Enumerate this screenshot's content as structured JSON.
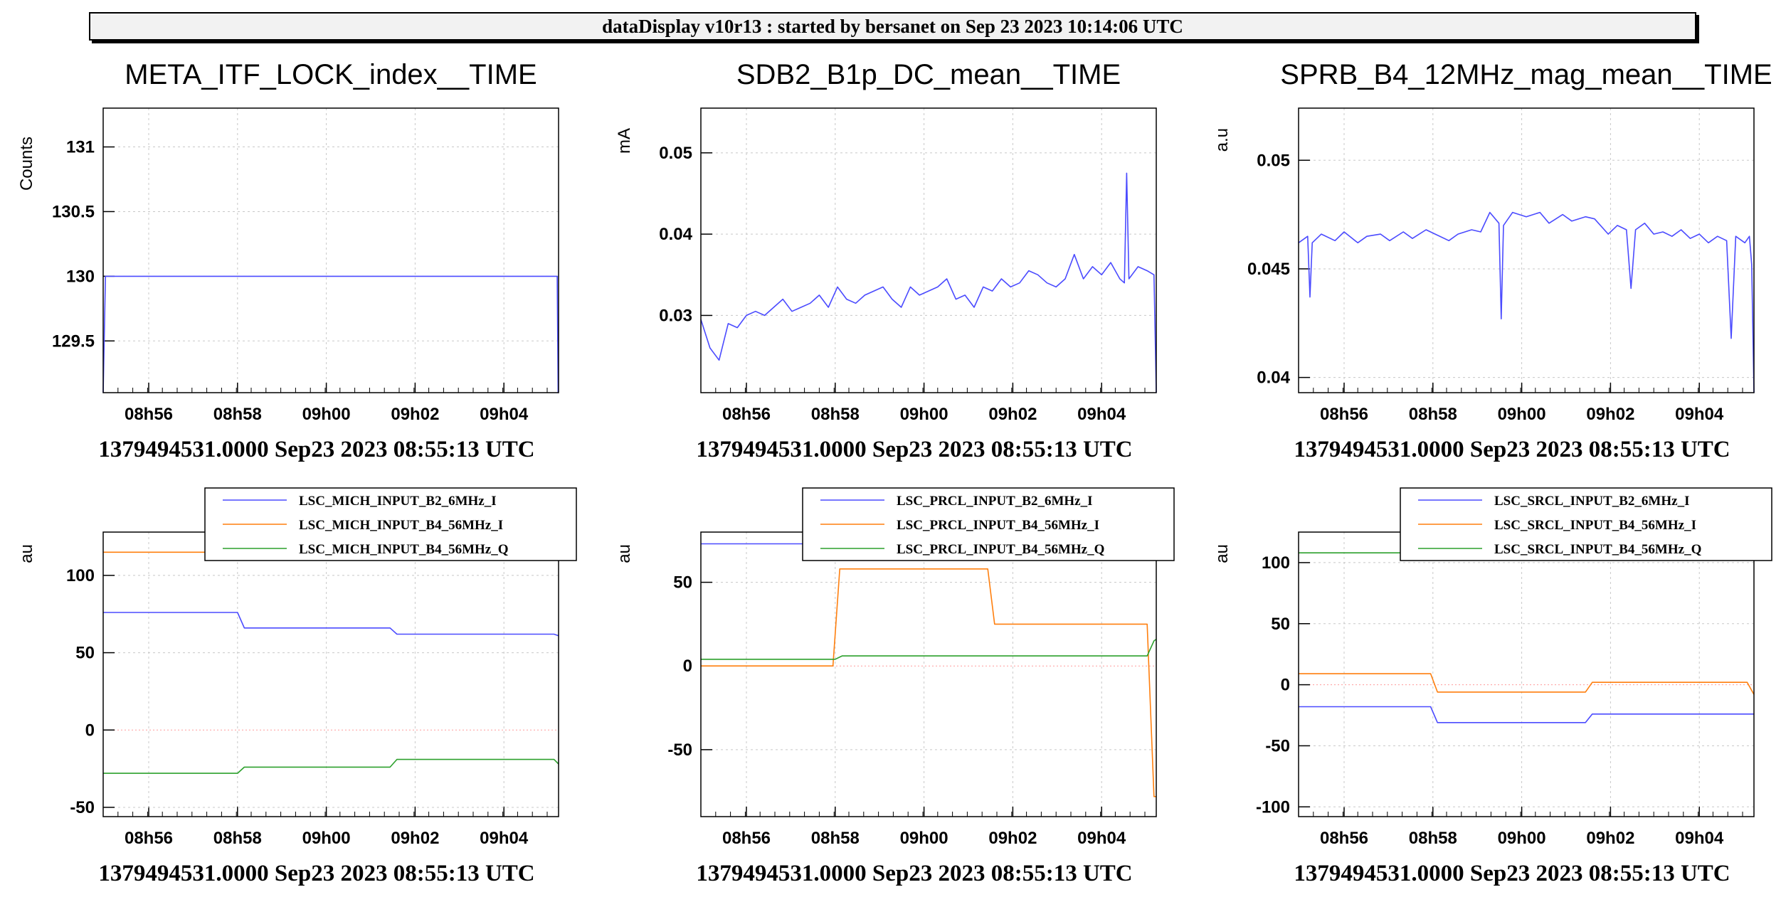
{
  "header": {
    "title": "dataDisplay v10r13 : started by bersanet on Sep 23 2023 10:14:06 UTC"
  },
  "colors": {
    "blue": "#4b4bff",
    "orange": "#ff7f0e",
    "green": "#2ca02c",
    "grid": "#c8c8c8",
    "red_zero": "#ff9a9a"
  },
  "chart_data": [
    {
      "type": "line",
      "title": "META_ITF_LOCK_index__TIME",
      "ylabel": "Counts",
      "footer": "1379494531.0000 Sep23 2023 08:55:13 UTC",
      "xticks": [
        "08h56",
        "08h58",
        "09h00",
        "09h02",
        "09h04"
      ],
      "yticks": [
        "129.5",
        "130",
        "130.5",
        "131"
      ],
      "ylim": [
        129.1,
        131.3
      ],
      "series": [
        {
          "color": "blue",
          "x": [
            0,
            0.005,
            0.01,
            0.995,
            0.997,
            0.999,
            1.0
          ],
          "y": [
            129.1,
            130.0,
            130.0,
            130.0,
            130.0,
            129.1,
            129.1
          ]
        }
      ]
    },
    {
      "type": "line",
      "title": "SDB2_B1p_DC_mean__TIME",
      "ylabel": "mA",
      "footer": "1379494531.0000 Sep23 2023 08:55:13 UTC",
      "xticks": [
        "08h56",
        "08h58",
        "09h00",
        "09h02",
        "09h04"
      ],
      "yticks": [
        "0.03",
        "0.04",
        "0.05"
      ],
      "ylim": [
        0.0205,
        0.0555
      ],
      "series": [
        {
          "color": "blue",
          "x": [
            0,
            0.02,
            0.04,
            0.06,
            0.08,
            0.1,
            0.12,
            0.14,
            0.16,
            0.18,
            0.2,
            0.22,
            0.24,
            0.26,
            0.28,
            0.3,
            0.32,
            0.34,
            0.36,
            0.38,
            0.4,
            0.42,
            0.44,
            0.46,
            0.48,
            0.5,
            0.52,
            0.54,
            0.56,
            0.58,
            0.6,
            0.62,
            0.64,
            0.66,
            0.68,
            0.7,
            0.72,
            0.74,
            0.76,
            0.78,
            0.8,
            0.82,
            0.84,
            0.86,
            0.88,
            0.9,
            0.92,
            0.93,
            0.935,
            0.94,
            0.96,
            0.98,
            0.995,
            1.0
          ],
          "y": [
            0.0295,
            0.026,
            0.0245,
            0.029,
            0.0285,
            0.03,
            0.0305,
            0.03,
            0.031,
            0.032,
            0.0305,
            0.031,
            0.0315,
            0.0325,
            0.031,
            0.0335,
            0.032,
            0.0315,
            0.0325,
            0.033,
            0.0335,
            0.032,
            0.031,
            0.0335,
            0.0325,
            0.033,
            0.0335,
            0.0345,
            0.032,
            0.0325,
            0.031,
            0.0335,
            0.033,
            0.0345,
            0.0335,
            0.034,
            0.0355,
            0.035,
            0.034,
            0.0335,
            0.0345,
            0.0375,
            0.0345,
            0.036,
            0.035,
            0.0365,
            0.0345,
            0.034,
            0.0475,
            0.0345,
            0.036,
            0.0355,
            0.035,
            0.0205
          ]
        }
      ]
    },
    {
      "type": "line",
      "title": "SPRB_B4_12MHz_mag_mean__TIME",
      "ylabel": "a.u",
      "footer": "1379494531.0000 Sep23 2023 08:55:13 UTC",
      "xticks": [
        "08h56",
        "08h58",
        "09h00",
        "09h02",
        "09h04"
      ],
      "yticks": [
        "0.04",
        "0.045",
        "0.05"
      ],
      "ylim": [
        0.0393,
        0.0524
      ],
      "series": [
        {
          "color": "blue",
          "x": [
            0,
            0.02,
            0.025,
            0.03,
            0.05,
            0.08,
            0.1,
            0.13,
            0.15,
            0.18,
            0.2,
            0.23,
            0.25,
            0.28,
            0.3,
            0.33,
            0.35,
            0.38,
            0.4,
            0.42,
            0.44,
            0.445,
            0.45,
            0.47,
            0.5,
            0.53,
            0.55,
            0.58,
            0.6,
            0.63,
            0.65,
            0.68,
            0.7,
            0.72,
            0.73,
            0.74,
            0.76,
            0.78,
            0.8,
            0.82,
            0.84,
            0.86,
            0.88,
            0.9,
            0.92,
            0.94,
            0.95,
            0.96,
            0.98,
            0.99,
            0.995,
            1.0
          ],
          "y": [
            0.0462,
            0.0465,
            0.0437,
            0.0462,
            0.0466,
            0.0463,
            0.0467,
            0.0462,
            0.0465,
            0.0466,
            0.0463,
            0.0467,
            0.0464,
            0.0468,
            0.0466,
            0.0463,
            0.0466,
            0.0468,
            0.0467,
            0.0476,
            0.0471,
            0.0427,
            0.047,
            0.0476,
            0.0474,
            0.0476,
            0.0471,
            0.0475,
            0.0472,
            0.0474,
            0.0473,
            0.0466,
            0.047,
            0.0468,
            0.0441,
            0.0468,
            0.0471,
            0.0466,
            0.0467,
            0.0465,
            0.0468,
            0.0464,
            0.0466,
            0.0462,
            0.0465,
            0.0463,
            0.0418,
            0.0465,
            0.0462,
            0.0465,
            0.0452,
            0.0393
          ]
        }
      ]
    },
    {
      "type": "line",
      "title": "",
      "ylabel": "au",
      "footer": "1379494531.0000 Sep23 2023 08:55:13 UTC",
      "xticks": [
        "08h56",
        "08h58",
        "09h00",
        "09h02",
        "09h04"
      ],
      "yticks": [
        "-50",
        "0",
        "50",
        "100"
      ],
      "ylim": [
        -56,
        128
      ],
      "legend": [
        "LSC_MICH_INPUT_B2_6MHz_I",
        "LSC_MICH_INPUT_B4_56MHz_I",
        "LSC_MICH_INPUT_B4_56MHz_Q"
      ],
      "series": [
        {
          "name": "LSC_MICH_INPUT_B2_6MHz_I",
          "color": "blue",
          "x": [
            0,
            0.295,
            0.31,
            0.63,
            0.645,
            0.99,
            1.0
          ],
          "y": [
            76,
            76,
            66,
            66,
            62,
            62,
            61
          ]
        },
        {
          "name": "LSC_MICH_INPUT_B4_56MHz_I",
          "color": "orange",
          "x": [
            0,
            1.0
          ],
          "y": [
            115,
            115
          ]
        },
        {
          "name": "LSC_MICH_INPUT_B4_56MHz_Q",
          "color": "green",
          "x": [
            0,
            0.295,
            0.31,
            0.63,
            0.645,
            0.99,
            1.0
          ],
          "y": [
            -28,
            -28,
            -24,
            -24,
            -19,
            -19,
            -22
          ]
        }
      ]
    },
    {
      "type": "line",
      "title": "",
      "ylabel": "au",
      "footer": "1379494531.0000 Sep23 2023 08:55:13 UTC",
      "xticks": [
        "08h56",
        "08h58",
        "09h00",
        "09h02",
        "09h04"
      ],
      "yticks": [
        "-50",
        "0",
        "50"
      ],
      "ylim": [
        -90,
        80
      ],
      "legend": [
        "LSC_PRCL_INPUT_B2_6MHz_I",
        "LSC_PRCL_INPUT_B4_56MHz_I",
        "LSC_PRCL_INPUT_B4_56MHz_Q"
      ],
      "series": [
        {
          "name": "LSC_PRCL_INPUT_B2_6MHz_I",
          "color": "blue",
          "x": [
            0,
            0.25
          ],
          "y": [
            73,
            73
          ]
        },
        {
          "name": "LSC_PRCL_INPUT_B4_56MHz_I",
          "color": "orange",
          "x": [
            0,
            0.29,
            0.305,
            0.63,
            0.645,
            0.98,
            0.995,
            1.0
          ],
          "y": [
            0,
            0,
            58,
            58,
            25,
            25,
            -78,
            -78
          ]
        },
        {
          "name": "LSC_PRCL_INPUT_B4_56MHz_Q",
          "color": "green",
          "x": [
            0,
            0.295,
            0.31,
            0.98,
            0.995,
            1.0
          ],
          "y": [
            4,
            4,
            6,
            6,
            15,
            16
          ]
        }
      ]
    },
    {
      "type": "line",
      "title": "",
      "ylabel": "au",
      "footer": "1379494531.0000 Sep23 2023 08:55:13 UTC",
      "xticks": [
        "08h56",
        "08h58",
        "09h00",
        "09h02",
        "09h04"
      ],
      "yticks": [
        "-100",
        "-50",
        "0",
        "50",
        "100"
      ],
      "ylim": [
        -108,
        125
      ],
      "legend": [
        "LSC_SRCL_INPUT_B2_6MHz_I",
        "LSC_SRCL_INPUT_B4_56MHz_I",
        "LSC_SRCL_INPUT_B4_56MHz_Q"
      ],
      "series": [
        {
          "name": "LSC_SRCL_INPUT_B2_6MHz_I",
          "color": "blue",
          "x": [
            0,
            0.29,
            0.305,
            0.63,
            0.645,
            1.0
          ],
          "y": [
            -18,
            -18,
            -31,
            -31,
            -24,
            -24
          ]
        },
        {
          "name": "LSC_SRCL_INPUT_B4_56MHz_I",
          "color": "orange",
          "x": [
            0,
            0.29,
            0.305,
            0.63,
            0.645,
            0.985,
            1.0
          ],
          "y": [
            9,
            9,
            -6,
            -6,
            2,
            2,
            -8
          ]
        },
        {
          "name": "LSC_SRCL_INPUT_B4_56MHz_Q",
          "color": "green",
          "x": [
            0,
            1.0
          ],
          "y": [
            108,
            108
          ]
        }
      ]
    }
  ]
}
